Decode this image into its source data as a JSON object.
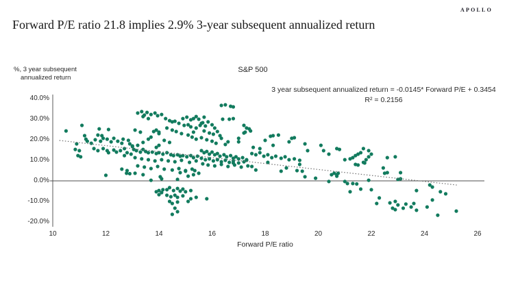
{
  "brand": {
    "logo_text": "APOLLO"
  },
  "header": {
    "title": "Forward P/E ratio 21.8 implies 2.9% 3-year subsequent annualized return"
  },
  "chart_data": {
    "type": "scatter",
    "title": "S&P 500",
    "xlabel": "Forward P/E ratio",
    "ylabel_line1": "%, 3 year subsequent",
    "ylabel_line2": "annualized return",
    "annotation_line1": "3 year subsequent annualized return = -0.0145* Forward P/E + 0.3454",
    "annotation_line2": "R² = 0.2156",
    "xlim": [
      10,
      26
    ],
    "ylim_pct": [
      -20,
      40
    ],
    "x_ticks": [
      10,
      12,
      14,
      16,
      18,
      20,
      22,
      24,
      26
    ],
    "y_ticks": [
      "40.0%",
      "30.0%",
      "20.0%",
      "10.0%",
      "0.0%",
      "-10.0%",
      "-20.0%"
    ],
    "y_tick_values_pct": [
      40,
      30,
      20,
      10,
      0,
      -10,
      -20
    ],
    "grid": false,
    "legend": "none",
    "point_color": "#127b5e",
    "axis_color": "#595959",
    "zero_line_color": "#4d4d4d",
    "trendline": {
      "slope": -0.0145,
      "intercept": 0.3454,
      "x_start": 10.25,
      "x_end": 25.25,
      "style": "dotted",
      "color": "#6e6e6e"
    },
    "points_pe_returnpct": [
      [
        10.5,
        24.3
      ],
      [
        11.1,
        27.0
      ],
      [
        10.85,
        15.3
      ],
      [
        10.9,
        18.0
      ],
      [
        11.0,
        14.7
      ],
      [
        10.95,
        12.3
      ],
      [
        11.05,
        11.7
      ],
      [
        11.2,
        22.0
      ],
      [
        11.25,
        20.3
      ],
      [
        11.3,
        19.3
      ],
      [
        11.45,
        18.3
      ],
      [
        11.6,
        20.0
      ],
      [
        11.7,
        22.3
      ],
      [
        11.75,
        25.3
      ],
      [
        11.8,
        19.3
      ],
      [
        11.85,
        22.0
      ],
      [
        11.9,
        20.7
      ],
      [
        12.05,
        20.3
      ],
      [
        12.1,
        25.0
      ],
      [
        12.2,
        19.0
      ],
      [
        12.3,
        20.7
      ],
      [
        12.45,
        19.3
      ],
      [
        12.6,
        18.3
      ],
      [
        12.65,
        20.3
      ],
      [
        12.85,
        19.7
      ],
      [
        12.9,
        18.0
      ],
      [
        13.0,
        17.0
      ],
      [
        11.55,
        15.7
      ],
      [
        11.7,
        14.7
      ],
      [
        11.9,
        15.7
      ],
      [
        12.05,
        14.7
      ],
      [
        12.1,
        13.7
      ],
      [
        12.3,
        15.0
      ],
      [
        12.4,
        14.0
      ],
      [
        12.55,
        14.7
      ],
      [
        12.7,
        15.7
      ],
      [
        12.8,
        13.7
      ],
      [
        12.95,
        13.0
      ],
      [
        12.7,
        12.3
      ],
      [
        12.0,
        2.7
      ],
      [
        12.6,
        5.7
      ],
      [
        12.8,
        5.0
      ],
      [
        12.78,
        3.7
      ],
      [
        12.9,
        3.5
      ],
      [
        13.2,
        33.0
      ],
      [
        13.35,
        33.7
      ],
      [
        13.45,
        32.0
      ],
      [
        13.55,
        33.3
      ],
      [
        13.7,
        32.3
      ],
      [
        13.85,
        33.0
      ],
      [
        13.4,
        31.3
      ],
      [
        13.6,
        30.3
      ],
      [
        13.95,
        31.7
      ],
      [
        14.1,
        32.3
      ],
      [
        14.25,
        30.3
      ],
      [
        14.4,
        29.3
      ],
      [
        14.5,
        28.7
      ],
      [
        14.6,
        29.0
      ],
      [
        14.75,
        28.0
      ],
      [
        14.9,
        30.3
      ],
      [
        15.05,
        31.0
      ],
      [
        15.2,
        29.7
      ],
      [
        15.3,
        30.3
      ],
      [
        15.4,
        31.3
      ],
      [
        15.5,
        30.0
      ],
      [
        15.1,
        27.3
      ],
      [
        14.95,
        27.0
      ],
      [
        15.2,
        26.3
      ],
      [
        15.4,
        25.7
      ],
      [
        15.55,
        27.0
      ],
      [
        15.65,
        28.3
      ],
      [
        13.9,
        24.7
      ],
      [
        14.0,
        23.7
      ],
      [
        14.3,
        25.7
      ],
      [
        13.1,
        24.7
      ],
      [
        13.3,
        23.7
      ],
      [
        13.8,
        24.0
      ],
      [
        14.0,
        23.0
      ],
      [
        13.7,
        21.3
      ],
      [
        13.6,
        20.3
      ],
      [
        14.5,
        24.7
      ],
      [
        14.65,
        24.0
      ],
      [
        14.85,
        23.0
      ],
      [
        13.4,
        18.7
      ],
      [
        13.2,
        17.3
      ],
      [
        14.2,
        19.7
      ],
      [
        14.4,
        18.7
      ],
      [
        14.0,
        17.3
      ],
      [
        13.9,
        16.3
      ],
      [
        15.1,
        22.3
      ],
      [
        15.25,
        21.3
      ],
      [
        15.4,
        20.3
      ],
      [
        13.0,
        16.7
      ],
      [
        13.05,
        15.3
      ],
      [
        13.15,
        14.7
      ],
      [
        13.3,
        14.0
      ],
      [
        13.4,
        15.3
      ],
      [
        13.5,
        14.3
      ],
      [
        13.6,
        13.7
      ],
      [
        13.75,
        14.0
      ],
      [
        13.9,
        13.3
      ],
      [
        14.0,
        13.7
      ],
      [
        14.15,
        13.0
      ],
      [
        14.3,
        13.7
      ],
      [
        14.45,
        12.7
      ],
      [
        14.55,
        12.3
      ],
      [
        14.7,
        12.7
      ],
      [
        14.8,
        12.0
      ],
      [
        14.9,
        12.3
      ],
      [
        15.05,
        11.7
      ],
      [
        15.2,
        12.3
      ],
      [
        15.3,
        11.3
      ],
      [
        15.45,
        12.0
      ],
      [
        13.1,
        11.3
      ],
      [
        13.35,
        10.7
      ],
      [
        13.6,
        10.3
      ],
      [
        13.85,
        9.7
      ],
      [
        14.1,
        10.3
      ],
      [
        14.35,
        9.7
      ],
      [
        14.6,
        9.3
      ],
      [
        14.85,
        10.0
      ],
      [
        15.15,
        9.0
      ],
      [
        15.4,
        9.7
      ],
      [
        13.2,
        7.3
      ],
      [
        13.45,
        6.7
      ],
      [
        13.7,
        6.0
      ],
      [
        13.95,
        7.0
      ],
      [
        14.2,
        5.7
      ],
      [
        14.5,
        5.3
      ],
      [
        14.75,
        6.0
      ],
      [
        15.0,
        5.0
      ],
      [
        15.25,
        5.7
      ],
      [
        13.1,
        3.7
      ],
      [
        13.4,
        3.0
      ],
      [
        15.1,
        2.3
      ],
      [
        15.5,
        3.7
      ],
      [
        13.7,
        0.3
      ],
      [
        14.05,
        2.0
      ],
      [
        14.1,
        1.0
      ],
      [
        14.7,
        0.7
      ],
      [
        14.8,
        4.0
      ],
      [
        15.0,
        4.7
      ],
      [
        15.3,
        3.0
      ],
      [
        15.35,
        5.0
      ],
      [
        13.9,
        -5.3
      ],
      [
        14.0,
        -4.7
      ],
      [
        14.15,
        -4.3
      ],
      [
        14.3,
        -4.3
      ],
      [
        14.4,
        -3.3
      ],
      [
        14.55,
        -4.7
      ],
      [
        14.7,
        -3.7
      ],
      [
        14.8,
        -5.0
      ],
      [
        14.9,
        -4.0
      ],
      [
        15.0,
        -5.3
      ],
      [
        15.2,
        -4.7
      ],
      [
        14.0,
        -6.7
      ],
      [
        14.1,
        -5.7
      ],
      [
        14.3,
        -7.0
      ],
      [
        14.45,
        -7.7
      ],
      [
        14.6,
        -7.0
      ],
      [
        14.7,
        -8.0
      ],
      [
        14.9,
        -7.3
      ],
      [
        14.4,
        -10.0
      ],
      [
        14.5,
        -11.0
      ],
      [
        14.7,
        -10.3
      ],
      [
        15.1,
        -10.0
      ],
      [
        15.2,
        -8.7
      ],
      [
        15.4,
        -8.0
      ],
      [
        15.8,
        -8.7
      ],
      [
        14.6,
        -13.3
      ],
      [
        14.7,
        -15.0
      ],
      [
        14.5,
        -16.3
      ],
      [
        15.6,
        14.7
      ],
      [
        15.7,
        13.7
      ],
      [
        15.8,
        14.3
      ],
      [
        15.9,
        13.0
      ],
      [
        16.0,
        14.0
      ],
      [
        16.1,
        12.7
      ],
      [
        16.2,
        13.3
      ],
      [
        16.3,
        12.0
      ],
      [
        16.45,
        12.7
      ],
      [
        16.55,
        11.7
      ],
      [
        16.7,
        12.3
      ],
      [
        16.8,
        11.0
      ],
      [
        16.9,
        11.7
      ],
      [
        17.0,
        10.7
      ],
      [
        17.15,
        11.3
      ],
      [
        17.3,
        10.3
      ],
      [
        15.6,
        11.0
      ],
      [
        15.75,
        10.3
      ],
      [
        15.9,
        10.7
      ],
      [
        16.05,
        9.7
      ],
      [
        16.2,
        10.3
      ],
      [
        16.35,
        9.3
      ],
      [
        16.5,
        10.0
      ],
      [
        16.65,
        9.0
      ],
      [
        16.8,
        9.7
      ],
      [
        17.0,
        8.7
      ],
      [
        17.2,
        9.3
      ],
      [
        15.65,
        8.3
      ],
      [
        15.85,
        7.7
      ],
      [
        16.1,
        7.3
      ],
      [
        16.35,
        8.0
      ],
      [
        16.6,
        7.0
      ],
      [
        16.85,
        7.7
      ],
      [
        17.1,
        6.7
      ],
      [
        17.35,
        7.3
      ],
      [
        16.8,
        8.7
      ],
      [
        17.3,
        10.0
      ],
      [
        17.5,
        7.0
      ],
      [
        18.1,
        9.0
      ],
      [
        17.5,
        13.3
      ],
      [
        17.65,
        12.7
      ],
      [
        17.8,
        13.7
      ],
      [
        17.95,
        12.0
      ],
      [
        18.1,
        12.7
      ],
      [
        18.25,
        11.3
      ],
      [
        18.4,
        12.0
      ],
      [
        17.55,
        16.3
      ],
      [
        17.8,
        15.7
      ],
      [
        15.6,
        28.0
      ],
      [
        15.7,
        31.0
      ],
      [
        15.75,
        26.7
      ],
      [
        15.85,
        28.7
      ],
      [
        16.0,
        27.3
      ],
      [
        16.1,
        25.7
      ],
      [
        16.4,
        30.0
      ],
      [
        16.65,
        30.0
      ],
      [
        15.7,
        24.3
      ],
      [
        15.9,
        23.3
      ],
      [
        16.05,
        22.7
      ],
      [
        16.2,
        24.0
      ],
      [
        16.3,
        22.0
      ],
      [
        15.3,
        23.7
      ],
      [
        15.6,
        21.0
      ],
      [
        15.8,
        20.0
      ],
      [
        16.0,
        19.3
      ],
      [
        16.15,
        18.3
      ],
      [
        16.35,
        20.7
      ],
      [
        16.5,
        17.7
      ],
      [
        16.6,
        19.0
      ],
      [
        17.0,
        20.7
      ],
      [
        16.35,
        36.7
      ],
      [
        16.5,
        37.0
      ],
      [
        16.7,
        36.3
      ],
      [
        16.8,
        36.0
      ],
      [
        16.8,
        30.3
      ],
      [
        17.0,
        19.0
      ],
      [
        17.2,
        23.3
      ],
      [
        17.25,
        23.7
      ],
      [
        17.3,
        25.7
      ],
      [
        17.4,
        25.3
      ],
      [
        17.45,
        24.3
      ],
      [
        17.2,
        27.0
      ],
      [
        18.0,
        19.7
      ],
      [
        18.2,
        21.7
      ],
      [
        18.3,
        22.0
      ],
      [
        18.5,
        22.3
      ],
      [
        18.3,
        17.3
      ],
      [
        19.0,
        20.7
      ],
      [
        19.1,
        21.0
      ],
      [
        18.9,
        19.0
      ],
      [
        19.5,
        18.0
      ],
      [
        18.6,
        11.0
      ],
      [
        18.75,
        11.7
      ],
      [
        18.9,
        10.3
      ],
      [
        19.1,
        10.7
      ],
      [
        19.3,
        10.0
      ],
      [
        19.6,
        14.7
      ],
      [
        20.1,
        17.3
      ],
      [
        20.2,
        14.7
      ],
      [
        20.4,
        13.0
      ],
      [
        20.7,
        15.7
      ],
      [
        17.65,
        5.3
      ],
      [
        18.6,
        4.7
      ],
      [
        18.8,
        6.3
      ],
      [
        19.2,
        5.0
      ],
      [
        19.3,
        8.0
      ],
      [
        19.4,
        4.7
      ],
      [
        19.5,
        2.0
      ],
      [
        19.9,
        1.3
      ],
      [
        20.5,
        3.0
      ],
      [
        20.6,
        3.7
      ],
      [
        20.7,
        2.3
      ],
      [
        20.4,
        -0.3
      ],
      [
        20.8,
        15.3
      ],
      [
        21.0,
        10.3
      ],
      [
        21.2,
        10.7
      ],
      [
        21.3,
        11.3
      ],
      [
        21.4,
        12.3
      ],
      [
        21.5,
        13.0
      ],
      [
        21.6,
        13.7
      ],
      [
        21.7,
        15.7
      ],
      [
        21.9,
        14.7
      ],
      [
        22.0,
        13.0
      ],
      [
        21.9,
        11.7
      ],
      [
        21.8,
        10.3
      ],
      [
        21.7,
        9.0
      ],
      [
        21.4,
        8.0
      ],
      [
        21.5,
        7.7
      ],
      [
        21.75,
        8.7
      ],
      [
        22.6,
        11.3
      ],
      [
        22.9,
        11.7
      ],
      [
        22.45,
        6.3
      ],
      [
        22.6,
        4.0
      ],
      [
        23.1,
        4.0
      ],
      [
        22.5,
        3.7
      ],
      [
        20.75,
        3.7
      ],
      [
        20.7,
        3.0
      ],
      [
        21.0,
        -0.3
      ],
      [
        21.1,
        -1.3
      ],
      [
        21.3,
        -1.3
      ],
      [
        21.45,
        -1.5
      ],
      [
        21.6,
        -4.0
      ],
      [
        21.2,
        -5.3
      ],
      [
        21.9,
        0.3
      ],
      [
        22.0,
        -4.3
      ],
      [
        23.0,
        0.7
      ],
      [
        23.1,
        1.0
      ],
      [
        22.3,
        -8.3
      ],
      [
        22.2,
        -11.0
      ],
      [
        22.7,
        -10.7
      ],
      [
        22.9,
        -10.0
      ],
      [
        23.0,
        -11.7
      ],
      [
        22.8,
        -13.3
      ],
      [
        22.9,
        -14.0
      ],
      [
        23.2,
        -13.3
      ],
      [
        23.3,
        -11.3
      ],
      [
        23.5,
        -12.7
      ],
      [
        23.7,
        -14.3
      ],
      [
        23.6,
        -11.0
      ],
      [
        23.7,
        -4.7
      ],
      [
        24.2,
        -2.0
      ],
      [
        24.3,
        -3.0
      ],
      [
        24.3,
        -9.3
      ],
      [
        24.6,
        -5.3
      ],
      [
        24.8,
        -6.3
      ],
      [
        24.1,
        -12.7
      ],
      [
        24.5,
        -16.7
      ],
      [
        25.2,
        -14.7
      ]
    ]
  }
}
